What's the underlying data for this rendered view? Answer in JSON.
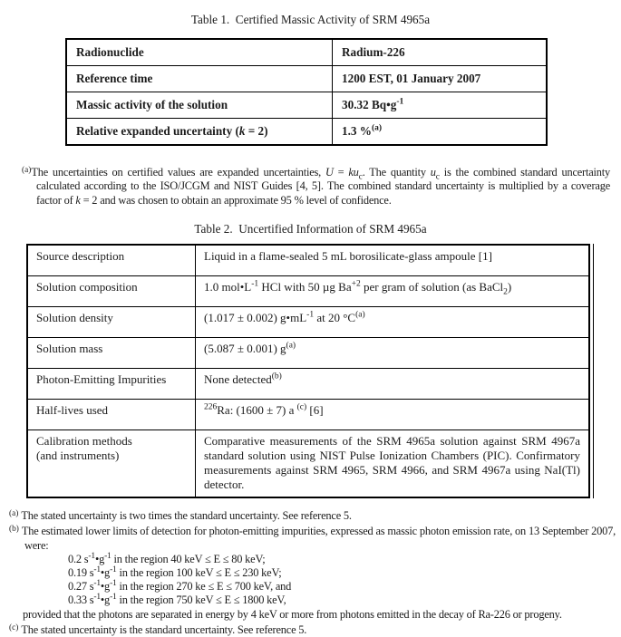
{
  "colors": {
    "page_bg": "#ffffff",
    "text": "#1b1b1b",
    "table_border": "#000000"
  },
  "table1": {
    "title": "Table 1.  Certified Massic Activity of SRM 4965a",
    "rows": [
      {
        "label": "Radionuclide",
        "value": "Radium-226"
      },
      {
        "label": "Reference time",
        "value": "1200 EST, 01 January 2007"
      },
      {
        "label": "Massic activity of the solution",
        "value": "30.32 Bq•g<sup>-1</sup>"
      },
      {
        "label": "Relative expanded uncertainty (<i>k</i> = 2)",
        "value": "1.3 %<sup>(a)</sup>"
      }
    ],
    "footnote": {
      "marker": "(a)",
      "text": "The uncertainties on certified values are expanded uncertainties, <i>U</i> = <i>ku</i><sub>c</sub>.  The quantity <i>u</i><sub>c</sub> is the combined standard uncertainty calculated according to the ISO/JCGM and NIST Guides [4, 5].  The combined standard uncertainty is multiplied by a coverage factor of <i>k</i> = 2 and was chosen to obtain an approximate 95 % level of confidence."
    }
  },
  "table2": {
    "title": "Table 2.  Uncertified Information of SRM 4965a",
    "rows": [
      {
        "label": "Source description",
        "value": "Liquid in a flame-sealed 5 mL borosilicate-glass ampoule [1]"
      },
      {
        "label": "Solution composition",
        "value": "1.0 mol•L<sup>-1</sup> HCl with 50 µg Ba<sup>+2</sup> per gram of solution (as BaCl<sub>2</sub>)"
      },
      {
        "label": "Solution density",
        "value": "(1.017 ± 0.002) g•mL<sup>-1</sup> at 20 °C<sup>(a)</sup>"
      },
      {
        "label": "Solution mass",
        "value": "(5.087 ± 0.001) g<sup>(a)</sup>"
      },
      {
        "label": "Photon-Emitting Impurities",
        "value": "None detected<sup>(b)</sup>"
      },
      {
        "label": "Half-lives used",
        "value": "<sup>226</sup>Ra: (1600 ± 7) a <sup>(c)</sup> [6]"
      },
      {
        "label": "Calibration methods<br>(and instruments)",
        "value": "Comparative measurements of the SRM 4965a solution against SRM 4967a standard solution using NIST Pulse Ionization Chambers (PIC).  Confirmatory measurements against SRM 4965, SRM 4966, and SRM 4967a using NaI(Tl) detector."
      }
    ],
    "footnote_a": {
      "marker": "(a)",
      "text": "The stated uncertainty is two times the standard uncertainty.  See reference 5."
    },
    "footnote_b": {
      "marker": "(b)",
      "text": "The estimated lower limits of detection for photon-emitting impurities, expressed as massic photon emission rate, on 13 September 2007, were:"
    },
    "detection_limits": [
      "0.2 s<sup>-1</sup>•g<sup>-1</sup> in the region 40 keV ≤ E ≤ 80 keV;",
      "0.19 s<sup>-1</sup>•g<sup>-1</sup> in the region 100 keV ≤ E ≤ 230 keV;",
      "0.27 s<sup>-1</sup>•g<sup>-1</sup> in the region 270 ke ≤ E ≤ 700 keV, and",
      "0.33 s<sup>-1</sup>•g<sup>-1</sup> in the region 750 keV ≤ E ≤ 1800 keV,"
    ],
    "footnote_b_tail": "provided that the photons are separated in energy by 4 keV or more from photons emitted in the decay of Ra-226 or progeny.",
    "footnote_c": {
      "marker": "(c)",
      "text": "The stated uncertainty is the standard uncertainty.  See reference 5."
    }
  }
}
